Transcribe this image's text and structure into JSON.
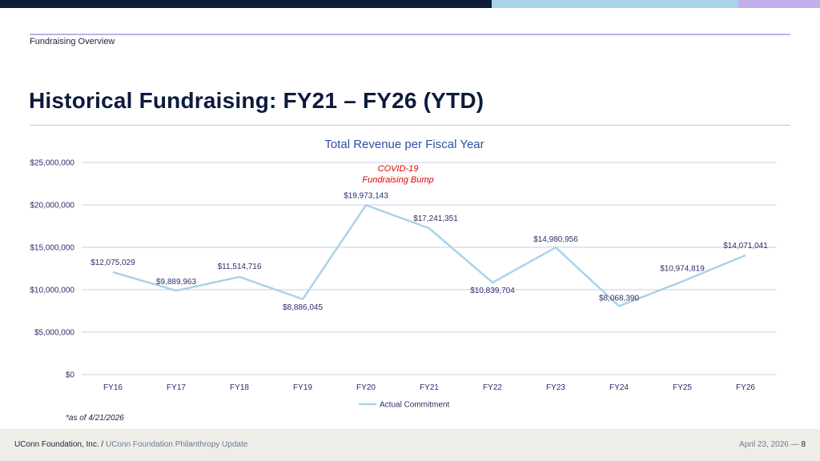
{
  "header": {
    "section_label": "Fundraising Overview",
    "title": "Historical Fundraising: FY21 – FY26 (YTD)"
  },
  "colors": {
    "navy": "#0c1a3c",
    "light_blue": "#a9d3ea",
    "lavender": "#c3aee9",
    "series_line": "#a9d3ea",
    "annotation": "#e00000",
    "chart_title": "#2f4fa6",
    "footer_bg": "#efede7"
  },
  "chart_data": {
    "type": "line",
    "title": "Total Revenue per Fiscal Year",
    "categories": [
      "FY16",
      "FY17",
      "FY18",
      "FY19",
      "FY20",
      "FY21",
      "FY22",
      "FY23",
      "FY24",
      "FY25",
      "FY26"
    ],
    "series": [
      {
        "name": "Actual Commitment",
        "values": [
          12075029,
          9889963,
          11514716,
          8886045,
          19973143,
          17241351,
          10839704,
          14980956,
          8068390,
          10974819,
          14071041
        ],
        "data_labels": [
          "$12,075,029",
          "$9,889,963",
          "$11,514,716",
          "$8,886,045",
          "$19,973,143",
          "$17,241,351",
          "$10,839,704",
          "$14,980,956",
          "$8,068,390",
          "$10,974,819",
          "$14,071,041"
        ]
      }
    ],
    "ylim": [
      0,
      25000000
    ],
    "yticks": [
      0,
      5000000,
      10000000,
      15000000,
      20000000,
      25000000
    ],
    "ytick_labels": [
      "$0",
      "$5,000,000",
      "$10,000,000",
      "$15,000,000",
      "$20,000,000",
      "$25,000,000"
    ],
    "grid": true,
    "legend_position": "bottom",
    "annotation": {
      "category": "FY20",
      "lines": [
        "COVID-19",
        "Fundraising Bump"
      ]
    }
  },
  "footnote": "*as of 4/21/2026",
  "footer": {
    "org": "UConn Foundation, Inc. /",
    "subtitle": "UConn Foundation Philanthropy Update",
    "date": "April 23, 2026 —",
    "page": "8"
  }
}
